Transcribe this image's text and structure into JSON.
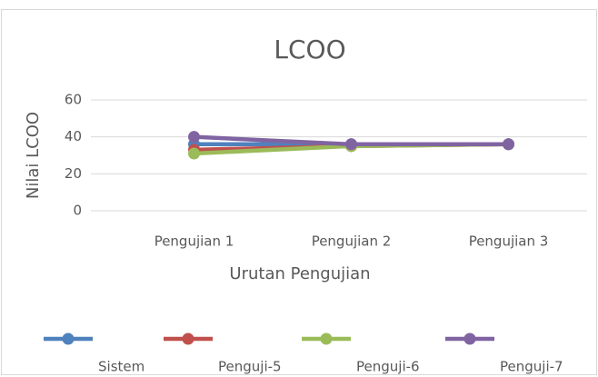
{
  "chart_data": {
    "type": "line",
    "title": "LCOO",
    "x_label": "Urutan Pengujian",
    "y_label": "Nilai LCOO",
    "categories": [
      "Pengujian 1",
      "Pengujian 2",
      "Pengujian 3"
    ],
    "series": [
      {
        "name": "Sistem",
        "color": "#4f81bd",
        "values": [
          36,
          36,
          36
        ]
      },
      {
        "name": "Penguji-5",
        "color": "#c0504d",
        "values": [
          33,
          35,
          36
        ]
      },
      {
        "name": "Penguji-6",
        "color": "#9bbb59",
        "values": [
          31,
          35,
          36
        ]
      },
      {
        "name": "Penguji-7",
        "color": "#8064a2",
        "values": [
          40,
          36,
          36
        ]
      }
    ],
    "ylim": [
      0,
      60
    ],
    "yticks": [
      0,
      20,
      40,
      60
    ],
    "grid": true,
    "legend": "bottom"
  }
}
